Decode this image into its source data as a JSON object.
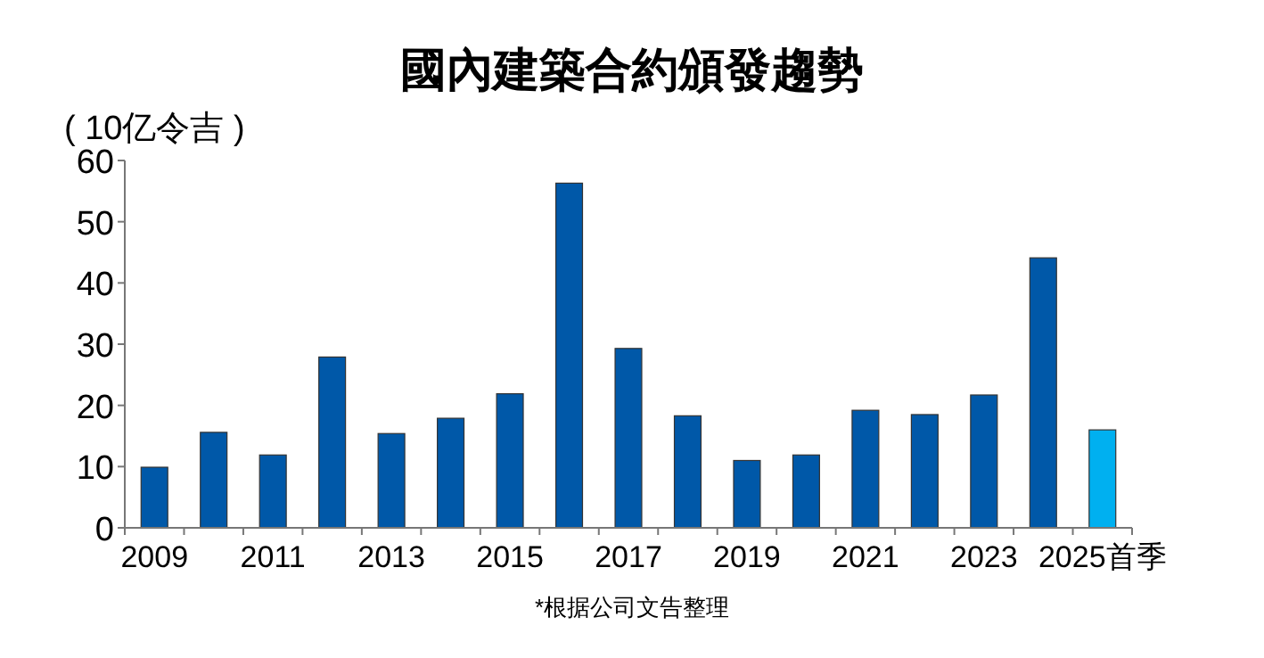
{
  "chart_data": {
    "type": "bar",
    "title": "國內建築合約頒發趨勢",
    "ylabel": "( 10亿令吉 )",
    "categories": [
      "2009",
      null,
      "2011",
      null,
      "2013",
      null,
      "2015",
      null,
      "2017",
      null,
      "2019",
      null,
      "2021",
      null,
      "2023",
      null,
      "2025首季"
    ],
    "values": [
      9.9,
      15.6,
      11.9,
      27.9,
      15.4,
      17.9,
      21.9,
      56.3,
      29.3,
      18.3,
      11,
      11.9,
      19.2,
      18.5,
      21.7,
      44.1,
      16
    ],
    "colors": [
      "#0058a8",
      "#0058a8",
      "#0058a8",
      "#0058a8",
      "#0058a8",
      "#0058a8",
      "#0058a8",
      "#0058a8",
      "#0058a8",
      "#0058a8",
      "#0058a8",
      "#0058a8",
      "#0058a8",
      "#0058a8",
      "#0058a8",
      "#0058a8",
      "#00b0f0"
    ],
    "ylim": [
      0,
      60
    ],
    "yticks": [
      0,
      10,
      20,
      30,
      40,
      50,
      60
    ],
    "grid": false,
    "annotations": [
      "*根据公司文告整理"
    ]
  }
}
